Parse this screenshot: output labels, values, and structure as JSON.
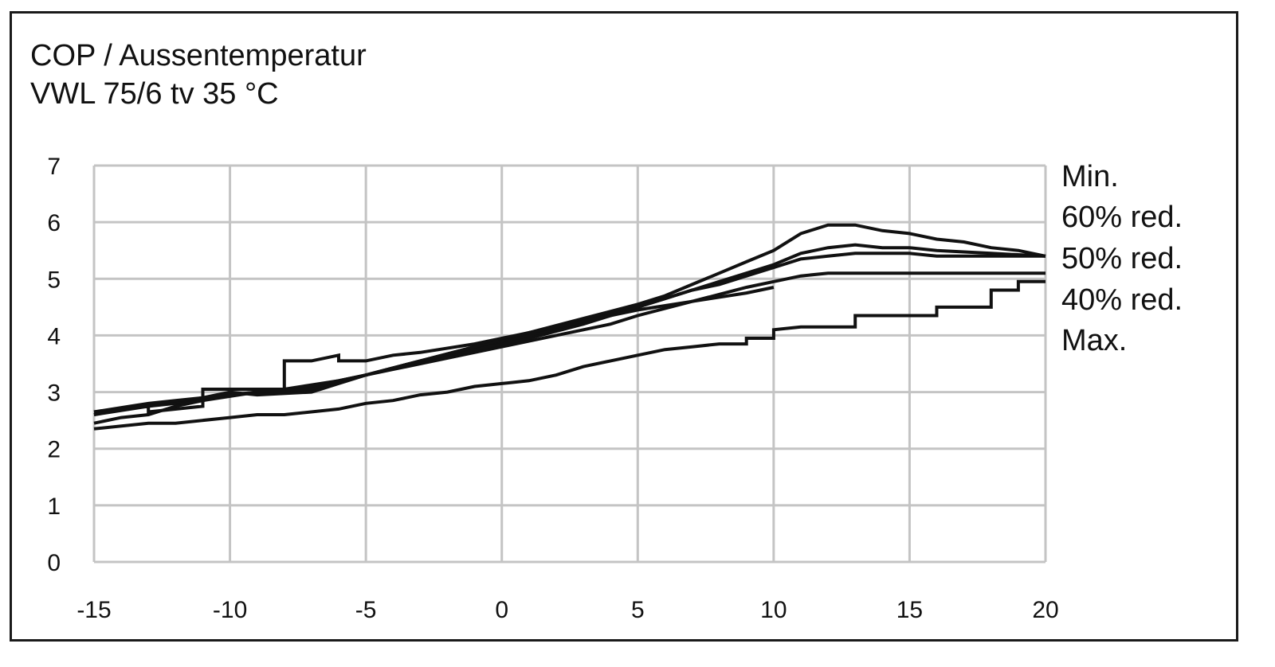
{
  "title_lines": [
    "COP / Aussentemperatur",
    "VWL 75/6 tv 35 °C"
  ],
  "chart_data": {
    "type": "line",
    "title": "COP / Aussentemperatur VWL 75/6 tv 35 °C",
    "xlabel": "",
    "ylabel": "",
    "xlim": [
      -15,
      20
    ],
    "ylim": [
      0,
      7
    ],
    "x_ticks": [
      -15,
      -10,
      -5,
      0,
      5,
      10,
      15,
      20
    ],
    "y_ticks": [
      0,
      1,
      2,
      3,
      4,
      5,
      6,
      7
    ],
    "grid": true,
    "legend_position": "right",
    "legend": [
      "Min.",
      "60% red.",
      "50% red.",
      "40% red.",
      "Max."
    ],
    "series": [
      {
        "points": [
          [
            -15,
            2.45
          ],
          [
            -14,
            2.55
          ],
          [
            -13,
            2.6
          ],
          [
            -12,
            2.75
          ],
          [
            -10,
            2.95
          ],
          [
            -8,
            3.05
          ],
          [
            -6,
            3.2
          ],
          [
            -4,
            3.4
          ],
          [
            -2,
            3.6
          ],
          [
            0,
            3.8
          ],
          [
            2,
            4.0
          ],
          [
            4,
            4.2
          ],
          [
            5,
            4.35
          ],
          [
            7,
            4.6
          ],
          [
            9,
            4.85
          ],
          [
            10,
            4.95
          ],
          [
            11,
            5.05
          ],
          [
            12,
            5.1
          ],
          [
            14,
            5.1
          ],
          [
            16,
            5.1
          ],
          [
            18,
            5.1
          ],
          [
            20,
            5.1
          ]
        ]
      },
      {
        "points": [
          [
            -15,
            2.6
          ],
          [
            -13,
            2.75
          ],
          [
            -11,
            2.85
          ],
          [
            -9,
            3.0
          ],
          [
            -7,
            3.1
          ],
          [
            -5,
            3.3
          ],
          [
            -3,
            3.55
          ],
          [
            -1,
            3.75
          ],
          [
            1,
            3.95
          ],
          [
            3,
            4.2
          ],
          [
            5,
            4.5
          ],
          [
            6,
            4.65
          ],
          [
            7,
            4.8
          ],
          [
            8,
            4.9
          ],
          [
            9,
            5.05
          ],
          [
            10,
            5.2
          ],
          [
            11,
            5.35
          ],
          [
            12,
            5.4
          ],
          [
            13,
            5.45
          ],
          [
            15,
            5.45
          ],
          [
            16,
            5.4
          ],
          [
            18,
            5.4
          ],
          [
            20,
            5.4
          ]
        ]
      },
      {
        "points": [
          [
            -15,
            2.65
          ],
          [
            -13,
            2.75
          ],
          [
            -11,
            2.9
          ],
          [
            -9,
            3.0
          ],
          [
            -7,
            3.05
          ],
          [
            -5,
            3.3
          ],
          [
            -3,
            3.55
          ],
          [
            -1,
            3.8
          ],
          [
            1,
            4.0
          ],
          [
            3,
            4.25
          ],
          [
            5,
            4.5
          ],
          [
            6,
            4.65
          ],
          [
            7,
            4.8
          ],
          [
            8,
            4.95
          ],
          [
            9,
            5.1
          ],
          [
            10,
            5.25
          ],
          [
            11,
            5.45
          ],
          [
            12,
            5.55
          ],
          [
            13,
            5.6
          ],
          [
            14,
            5.55
          ],
          [
            15,
            5.55
          ],
          [
            16,
            5.5
          ],
          [
            18,
            5.45
          ],
          [
            20,
            5.4
          ]
        ]
      },
      {
        "points": [
          [
            -15,
            2.65
          ],
          [
            -13,
            2.8
          ],
          [
            -12,
            2.85
          ],
          [
            -11,
            2.9
          ],
          [
            -10,
            3.0
          ],
          [
            -9,
            2.95
          ],
          [
            -7,
            3.0
          ],
          [
            -6,
            3.15
          ],
          [
            -5,
            3.3
          ],
          [
            -3,
            3.55
          ],
          [
            -1,
            3.8
          ],
          [
            1,
            4.05
          ],
          [
            3,
            4.3
          ],
          [
            5,
            4.55
          ],
          [
            6,
            4.7
          ],
          [
            7,
            4.9
          ],
          [
            8,
            5.1
          ],
          [
            9,
            5.3
          ],
          [
            10,
            5.5
          ],
          [
            11,
            5.8
          ],
          [
            12,
            5.95
          ],
          [
            13,
            5.95
          ],
          [
            14,
            5.85
          ],
          [
            15,
            5.8
          ],
          [
            16,
            5.7
          ],
          [
            17,
            5.65
          ],
          [
            18,
            5.55
          ],
          [
            19,
            5.5
          ],
          [
            20,
            5.4
          ]
        ]
      },
      {
        "points": [
          [
            -15,
            2.35
          ],
          [
            -13,
            2.45
          ],
          [
            -12,
            2.45
          ],
          [
            -10,
            2.55
          ],
          [
            -9,
            2.6
          ],
          [
            -8,
            2.6
          ],
          [
            -6,
            2.7
          ],
          [
            -5,
            2.8
          ],
          [
            -4,
            2.85
          ],
          [
            -3,
            2.95
          ],
          [
            -2,
            3.0
          ],
          [
            -1,
            3.1
          ],
          [
            0,
            3.15
          ],
          [
            1,
            3.2
          ],
          [
            2,
            3.3
          ],
          [
            3,
            3.45
          ],
          [
            4,
            3.55
          ],
          [
            5,
            3.65
          ],
          [
            6,
            3.75
          ],
          [
            7,
            3.8
          ],
          [
            8,
            3.85
          ],
          [
            9,
            3.85
          ],
          [
            9,
            3.95
          ],
          [
            10,
            3.95
          ],
          [
            10,
            4.1
          ],
          [
            11,
            4.15
          ],
          [
            13,
            4.15
          ],
          [
            13,
            4.35
          ],
          [
            14,
            4.35
          ],
          [
            16,
            4.35
          ],
          [
            16,
            4.5
          ],
          [
            18,
            4.5
          ],
          [
            18,
            4.8
          ],
          [
            19,
            4.8
          ],
          [
            19,
            4.95
          ],
          [
            20,
            4.95
          ]
        ]
      },
      {
        "points": [
          [
            -15,
            2.6
          ],
          [
            -14,
            2.7
          ],
          [
            -13,
            2.75
          ],
          [
            -13,
            2.65
          ],
          [
            -11,
            2.75
          ],
          [
            -11,
            3.05
          ],
          [
            -10,
            3.05
          ],
          [
            -8,
            3.05
          ],
          [
            -8,
            3.55
          ],
          [
            -7,
            3.55
          ],
          [
            -6,
            3.65
          ],
          [
            -6,
            3.55
          ],
          [
            -5,
            3.55
          ],
          [
            -4,
            3.65
          ],
          [
            -3,
            3.7
          ],
          [
            -1,
            3.85
          ],
          [
            1,
            4.05
          ],
          [
            3,
            4.25
          ],
          [
            5,
            4.45
          ],
          [
            7,
            4.6
          ],
          [
            9,
            4.75
          ],
          [
            10,
            4.85
          ]
        ]
      }
    ]
  }
}
